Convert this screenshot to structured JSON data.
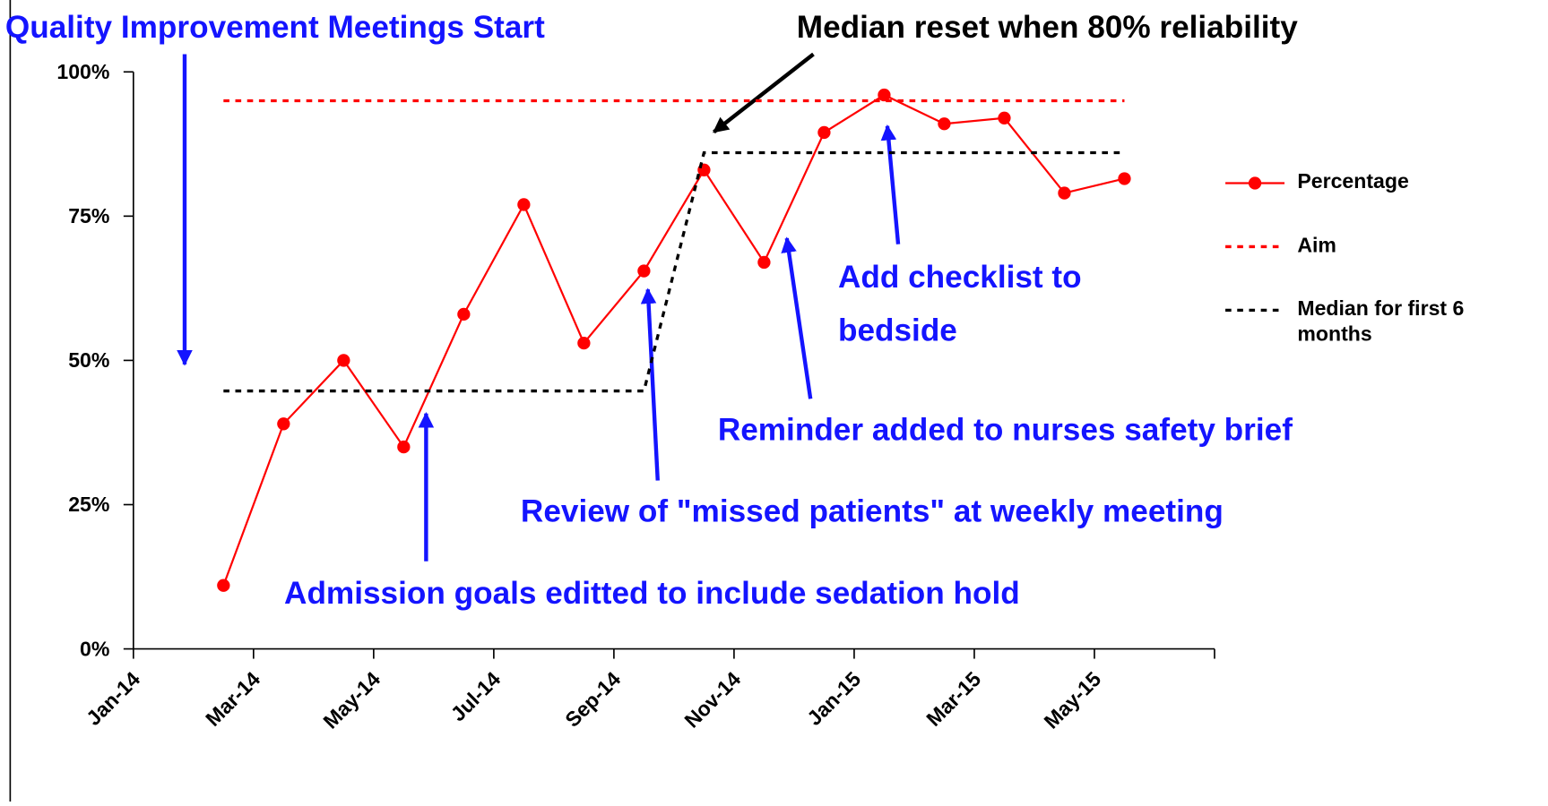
{
  "chart_data": {
    "type": "line",
    "categories": [
      "Jan-14",
      null,
      "Mar-14",
      null,
      "May-14",
      null,
      "Jul-14",
      null,
      "Sep-14",
      null,
      "Nov-14",
      null,
      "Jan-15",
      null,
      "Mar-15",
      null,
      "May-15",
      null
    ],
    "series": [
      {
        "name": "Percentage",
        "color": "#ff0000",
        "style": "solid",
        "markers": true,
        "values": [
          null,
          11,
          39,
          50,
          35,
          58,
          77,
          53,
          65.5,
          83,
          67,
          89.5,
          96,
          91,
          92,
          79,
          81.5,
          null
        ]
      },
      {
        "name": "Aim",
        "color": "#ff0000",
        "style": "dotted",
        "markers": false,
        "values": [
          null,
          95,
          95,
          95,
          95,
          95,
          95,
          95,
          95,
          95,
          95,
          95,
          95,
          95,
          95,
          95,
          95,
          null
        ]
      },
      {
        "name": "Median for first 6 months",
        "color": "#000000",
        "style": "dotted",
        "markers": false,
        "values": [
          null,
          44.7,
          44.7,
          44.7,
          44.7,
          44.7,
          44.7,
          44.7,
          44.7,
          86,
          86,
          86,
          86,
          86,
          86,
          86,
          86,
          null
        ]
      }
    ],
    "ylim": [
      0,
      100
    ],
    "yticks": [
      {
        "value": 0,
        "label": "0%"
      },
      {
        "value": 25,
        "label": "25%"
      },
      {
        "value": 50,
        "label": "50%"
      },
      {
        "value": 75,
        "label": "75%"
      },
      {
        "value": 100,
        "label": "100%"
      }
    ],
    "grid": false,
    "legend": "right",
    "annotations": [
      "Quality Improvement Meetings Start",
      "Median reset when 80% reliability",
      "Add checklist to",
      "bedside",
      "Reminder added to nurses safety brief",
      "Review of \"missed patients\" at weekly meeting",
      "Admission goals editted to include sedation hold"
    ]
  }
}
